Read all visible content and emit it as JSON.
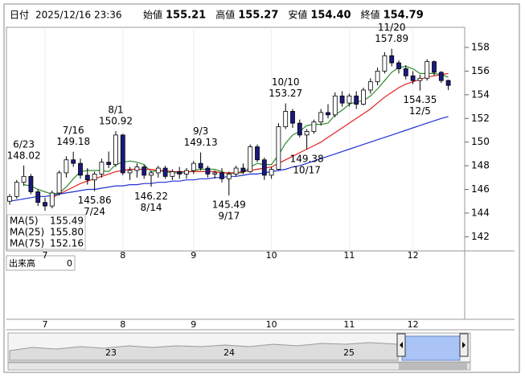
{
  "header": {
    "date_label": "日付",
    "date": "2025/12/16 23:36",
    "fields": [
      {
        "label": "始値",
        "value": "155.21",
        "color": "#000000"
      },
      {
        "label": "高値",
        "value": "155.27",
        "color": "#d01010"
      },
      {
        "label": "安値",
        "value": "154.40",
        "color": "#107010"
      },
      {
        "label": "終値",
        "value": "154.79",
        "color": "#000000"
      }
    ]
  },
  "volume": {
    "label": "出来高",
    "value": "0"
  },
  "navigator": {
    "labels": [
      "23",
      "24",
      "25"
    ]
  },
  "chart_data": {
    "type": "candlestick",
    "categories": [
      null,
      null,
      null,
      null,
      null,
      "7",
      null,
      null,
      null,
      null,
      null,
      null,
      null,
      null,
      null,
      null,
      "8",
      null,
      null,
      null,
      null,
      null,
      null,
      null,
      null,
      null,
      "9",
      null,
      null,
      null,
      null,
      null,
      null,
      null,
      null,
      null,
      null,
      "10",
      null,
      null,
      null,
      null,
      null,
      null,
      null,
      null,
      null,
      null,
      "11",
      null,
      null,
      null,
      null,
      null,
      null,
      null,
      null,
      "12",
      null,
      null,
      null,
      null,
      null
    ],
    "open": [
      145.0,
      145.4,
      146.6,
      147.1,
      145.8,
      144.9,
      144.6,
      145.7,
      147.4,
      148.5,
      148.2,
      147.2,
      146.8,
      147.3,
      148.3,
      148.1,
      150.6,
      147.4,
      147.6,
      147.9,
      147.2,
      147.4,
      147.8,
      147.1,
      147.5,
      147.3,
      147.6,
      148.2,
      147.8,
      147.3,
      147.4,
      146.9,
      147.3,
      147.8,
      147.5,
      149.6,
      148.5,
      147.2,
      147.7,
      151.3,
      152.6,
      151.6,
      150.6,
      150.9,
      151.7,
      152.5,
      152.3,
      153.9,
      153.3,
      153.9,
      153.2,
      154.4,
      155.1,
      156.0,
      157.3,
      156.7,
      156.2,
      155.6,
      155.2,
      155.4,
      156.8,
      155.9,
      155.21
    ],
    "high": [
      145.6,
      146.8,
      148.02,
      147.3,
      146.0,
      145.3,
      145.9,
      147.6,
      148.8,
      149.18,
      148.6,
      147.8,
      147.5,
      148.6,
      149.2,
      150.92,
      150.7,
      147.9,
      148.2,
      148.1,
      147.6,
      148.0,
      148.0,
      147.7,
      147.9,
      147.8,
      148.4,
      149.13,
      148.0,
      147.6,
      147.8,
      147.5,
      148.0,
      148.2,
      149.8,
      149.8,
      148.7,
      147.9,
      151.6,
      153.27,
      152.8,
      151.9,
      151.1,
      151.9,
      152.8,
      153.2,
      154.2,
      154.3,
      154.1,
      154.3,
      154.6,
      155.4,
      156.3,
      157.6,
      157.89,
      156.9,
      156.5,
      156.0,
      155.7,
      157.0,
      156.9,
      156.0,
      155.27
    ],
    "low": [
      144.7,
      145.2,
      146.3,
      145.6,
      144.6,
      144.2,
      144.4,
      145.5,
      147.0,
      147.9,
      146.9,
      146.4,
      145.86,
      147.0,
      147.8,
      147.9,
      147.2,
      146.8,
      147.0,
      146.9,
      146.22,
      147.0,
      146.9,
      146.8,
      146.9,
      146.9,
      147.3,
      147.6,
      147.0,
      146.9,
      146.6,
      145.49,
      147.1,
      147.3,
      147.4,
      148.3,
      146.8,
      146.9,
      147.6,
      151.1,
      151.2,
      150.4,
      149.38,
      150.7,
      151.4,
      152.0,
      152.1,
      153.0,
      153.0,
      152.8,
      153.1,
      154.1,
      154.8,
      155.8,
      156.4,
      155.8,
      155.3,
      154.9,
      154.35,
      155.2,
      155.6,
      155.0,
      154.4
    ],
    "close": [
      145.4,
      146.6,
      147.1,
      145.8,
      144.9,
      144.6,
      145.7,
      147.4,
      148.5,
      148.2,
      147.2,
      146.8,
      147.3,
      148.3,
      148.1,
      150.6,
      147.4,
      147.6,
      147.9,
      147.2,
      147.4,
      147.8,
      147.1,
      147.5,
      147.3,
      147.6,
      148.2,
      147.8,
      147.3,
      147.4,
      146.9,
      147.3,
      147.8,
      147.5,
      149.6,
      148.5,
      147.2,
      147.7,
      151.3,
      152.6,
      151.6,
      150.6,
      150.9,
      151.7,
      152.5,
      152.3,
      153.9,
      153.3,
      153.9,
      153.2,
      154.4,
      155.1,
      156.0,
      157.3,
      156.7,
      156.2,
      155.6,
      155.2,
      155.4,
      156.8,
      155.9,
      155.2,
      154.79
    ],
    "up_color": "#ffffff",
    "down_color": "#1a1a80",
    "series": [
      {
        "name": "MA(5)",
        "color": "#2e8b2e",
        "legend_value": "155.49",
        "values": [
          null,
          null,
          146.4,
          146.3,
          146.0,
          145.8,
          145.6,
          145.7,
          146.2,
          146.9,
          147.5,
          147.6,
          147.6,
          147.6,
          147.5,
          148.1,
          148.3,
          148.4,
          148.3,
          148.1,
          147.5,
          147.6,
          147.5,
          147.4,
          147.4,
          147.4,
          147.6,
          147.7,
          147.7,
          147.7,
          147.5,
          147.3,
          147.4,
          147.4,
          147.9,
          148.2,
          148.1,
          148.1,
          148.9,
          149.9,
          150.6,
          150.9,
          151.4,
          151.5,
          151.5,
          151.6,
          152.3,
          152.7,
          153.2,
          153.4,
          153.5,
          153.9,
          154.5,
          155.2,
          155.9,
          156.3,
          156.4,
          156.2,
          155.8,
          155.8,
          155.8,
          155.7,
          155.49
        ]
      },
      {
        "name": "MA(25)",
        "color": "#e02020",
        "legend_value": "155.80",
        "values": [
          null,
          null,
          null,
          null,
          null,
          null,
          145.3,
          145.6,
          145.9,
          146.2,
          146.5,
          146.7,
          146.9,
          147.1,
          147.3,
          147.5,
          147.6,
          147.7,
          147.7,
          147.7,
          147.7,
          147.6,
          147.6,
          147.5,
          147.5,
          147.5,
          147.5,
          147.5,
          147.5,
          147.5,
          147.4,
          147.4,
          147.4,
          147.5,
          147.6,
          147.7,
          147.8,
          147.9,
          148.2,
          148.5,
          148.8,
          149.1,
          149.4,
          149.7,
          150.0,
          150.4,
          150.8,
          151.2,
          151.6,
          152.0,
          152.4,
          152.8,
          153.3,
          153.8,
          154.2,
          154.6,
          154.9,
          155.1,
          155.3,
          155.5,
          155.6,
          155.7,
          155.8
        ]
      },
      {
        "name": "MA(75)",
        "color": "#2030d0",
        "legend_value": "152.16",
        "values": [
          145.0,
          145.1,
          145.2,
          145.3,
          145.4,
          145.4,
          145.5,
          145.6,
          145.7,
          145.8,
          145.9,
          146.0,
          146.0,
          146.1,
          146.2,
          146.3,
          146.3,
          146.4,
          146.4,
          146.5,
          146.5,
          146.6,
          146.6,
          146.7,
          146.7,
          146.8,
          146.8,
          146.9,
          146.9,
          147.0,
          147.0,
          147.1,
          147.1,
          147.2,
          147.3,
          147.3,
          147.4,
          147.5,
          147.6,
          147.7,
          147.9,
          148.0,
          148.2,
          148.4,
          148.6,
          148.8,
          149.0,
          149.2,
          149.4,
          149.6,
          149.8,
          150.0,
          150.2,
          150.4,
          150.6,
          150.8,
          151.0,
          151.2,
          151.4,
          151.6,
          151.8,
          152.0,
          152.16
        ]
      }
    ],
    "annotations": [
      {
        "date": "6/23",
        "value": 148.02
      },
      {
        "date": "7/16",
        "value": 149.18
      },
      {
        "date": "7/24",
        "value": 145.86
      },
      {
        "date": "8/1",
        "value": 150.92
      },
      {
        "date": "8/14",
        "value": 146.22
      },
      {
        "date": "9/3",
        "value": 149.13
      },
      {
        "date": "9/17",
        "value": 145.49
      },
      {
        "date": "10/10",
        "value": 153.27
      },
      {
        "date": "10/17",
        "value": 149.38
      },
      {
        "date": "11/20",
        "value": 157.89
      },
      {
        "date": "12/5",
        "value": 154.35
      }
    ],
    "ylim": [
      140.8,
      159.7
    ],
    "yticks": [
      142,
      144,
      146,
      148,
      150,
      152,
      154,
      156,
      158
    ],
    "grid": false
  }
}
